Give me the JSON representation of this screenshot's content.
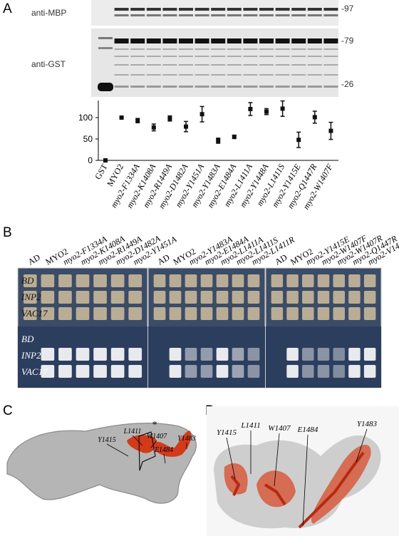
{
  "panel_a": {
    "label": "A",
    "blot_labels": [
      "anti-MBP",
      "anti-GST"
    ],
    "size_markers": [
      "-97",
      "-79",
      "-26"
    ]
  },
  "chart_data": {
    "type": "scatter",
    "categories": [
      "GST",
      "MYO2",
      "myo2-F1334A",
      "myo2-K1408A",
      "myo2-R1449A",
      "myo2-D1482A",
      "myo2-Y1451A",
      "myo2-Y1483A",
      "myo2-E1484A",
      "myo2-L1411A",
      "myo2-Y1448A",
      "myo2-L1411S",
      "myo2-Y1415E",
      "myo2-Q1447R",
      "myo2-W1407F"
    ],
    "values": [
      0,
      100,
      93,
      77,
      98,
      79,
      108,
      46,
      55,
      120,
      114,
      121,
      48,
      101,
      69
    ],
    "errors": [
      2,
      2,
      5,
      8,
      6,
      12,
      18,
      6,
      4,
      15,
      7,
      18,
      18,
      14,
      20
    ],
    "color": "#111111",
    "ylim": [
      0,
      140
    ],
    "yticks": [
      0,
      50,
      100
    ]
  },
  "panel_b": {
    "label": "B",
    "plates": [
      {
        "columns": [
          "AD",
          "MYO2",
          "myo2-F1334A",
          "myo2-K1408A",
          "myo2-R1449A",
          "myo2-D1482A",
          "myo2-Y1451A"
        ]
      },
      {
        "columns": [
          "AD",
          "MYO2",
          "myo2-Y1483A",
          "myo2-E1484A",
          "myo2-L1411A",
          "myo2-L1411S",
          "myo2-L1411R"
        ]
      },
      {
        "columns": [
          "AD",
          "MYO2",
          "myo2-Y1415E",
          "myo2-W1407F",
          "myo2-W1407R",
          "myo2-Q1447R",
          "myo2-V1448A"
        ]
      }
    ],
    "rows": [
      "BD",
      "INP2",
      "VAC17",
      "BD",
      "INP2",
      "VAC17"
    ]
  },
  "panel_c": {
    "label": "C",
    "residues": [
      "Y1415",
      "L1411",
      "*",
      "W1407",
      "E1484",
      "Y1483"
    ]
  },
  "panel_d": {
    "label": "D",
    "residues": [
      "Y1415",
      "L1411",
      "W1407",
      "E1484",
      "Y1483"
    ]
  }
}
